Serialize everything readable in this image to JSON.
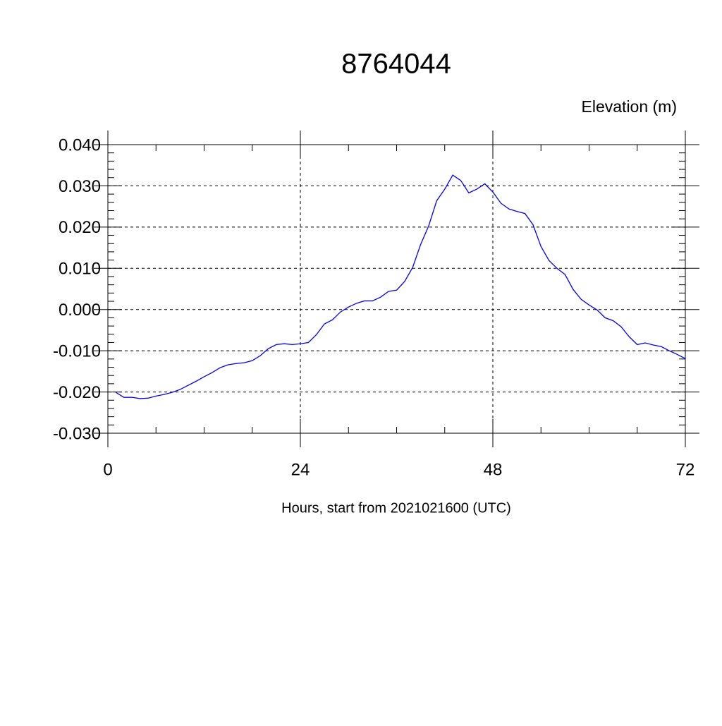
{
  "chart_data": {
    "type": "line",
    "title": "8764044",
    "subtitle": "Elevation (m)",
    "x_label": "Hours, start from 2021021600 (UTC)",
    "x": [
      1,
      2,
      3,
      4,
      5,
      6,
      7,
      8,
      9,
      10,
      11,
      12,
      13,
      14,
      15,
      16,
      17,
      18,
      19,
      20,
      21,
      22,
      23,
      24,
      25,
      26,
      27,
      28,
      29,
      30,
      31,
      32,
      33,
      34,
      35,
      36,
      37,
      38,
      39,
      40,
      41,
      42,
      43,
      44,
      45,
      46,
      47,
      48,
      49,
      50,
      51,
      52,
      53,
      54,
      55,
      56,
      57,
      58,
      59,
      60,
      61,
      62,
      63,
      64,
      65,
      66,
      67,
      68,
      69,
      70,
      71,
      72
    ],
    "series": [
      {
        "name": "Elevation",
        "color": "#0000ff",
        "values": [
          -0.0201,
          -0.0213,
          -0.0213,
          -0.0216,
          -0.0215,
          -0.021,
          -0.0206,
          -0.0201,
          -0.0194,
          -0.0184,
          -0.0174,
          -0.0163,
          -0.0153,
          -0.0141,
          -0.0134,
          -0.0131,
          -0.0129,
          -0.0124,
          -0.0112,
          -0.0095,
          -0.0085,
          -0.0083,
          -0.0085,
          -0.0083,
          -0.008,
          -0.0061,
          -0.0035,
          -0.0025,
          -0.0006,
          0.0006,
          0.0015,
          0.0021,
          0.0021,
          0.003,
          0.0044,
          0.0047,
          0.0068,
          0.0102,
          0.0158,
          0.0203,
          0.0264,
          0.0292,
          0.0326,
          0.0313,
          0.0283,
          0.0292,
          0.0305,
          0.0285,
          0.0258,
          0.0244,
          0.0238,
          0.0233,
          0.0206,
          0.0153,
          0.0119,
          0.01,
          0.0085,
          0.0049,
          0.0025,
          0.0011,
          -0.0001,
          -0.002,
          -0.0027,
          -0.0042,
          -0.0066,
          -0.0085,
          -0.0081,
          -0.0086,
          -0.009,
          -0.01,
          -0.0109,
          -0.0119
        ]
      }
    ],
    "xlim": [
      0,
      72
    ],
    "xticks": [
      0,
      24,
      48,
      72
    ],
    "ylim": [
      -0.03,
      0.04
    ],
    "yticks": [
      {
        "value": -0.03,
        "label": "-0.030"
      },
      {
        "value": -0.02,
        "label": "-0.020"
      },
      {
        "value": -0.01,
        "label": "-0.010"
      },
      {
        "value": 0,
        "label": "0.000"
      },
      {
        "value": 0.01,
        "label": "0.010"
      },
      {
        "value": 0.02,
        "label": "0.020"
      },
      {
        "value": 0.03,
        "label": "0.030"
      },
      {
        "value": 0.04,
        "label": "0.040"
      }
    ],
    "grid": true
  }
}
